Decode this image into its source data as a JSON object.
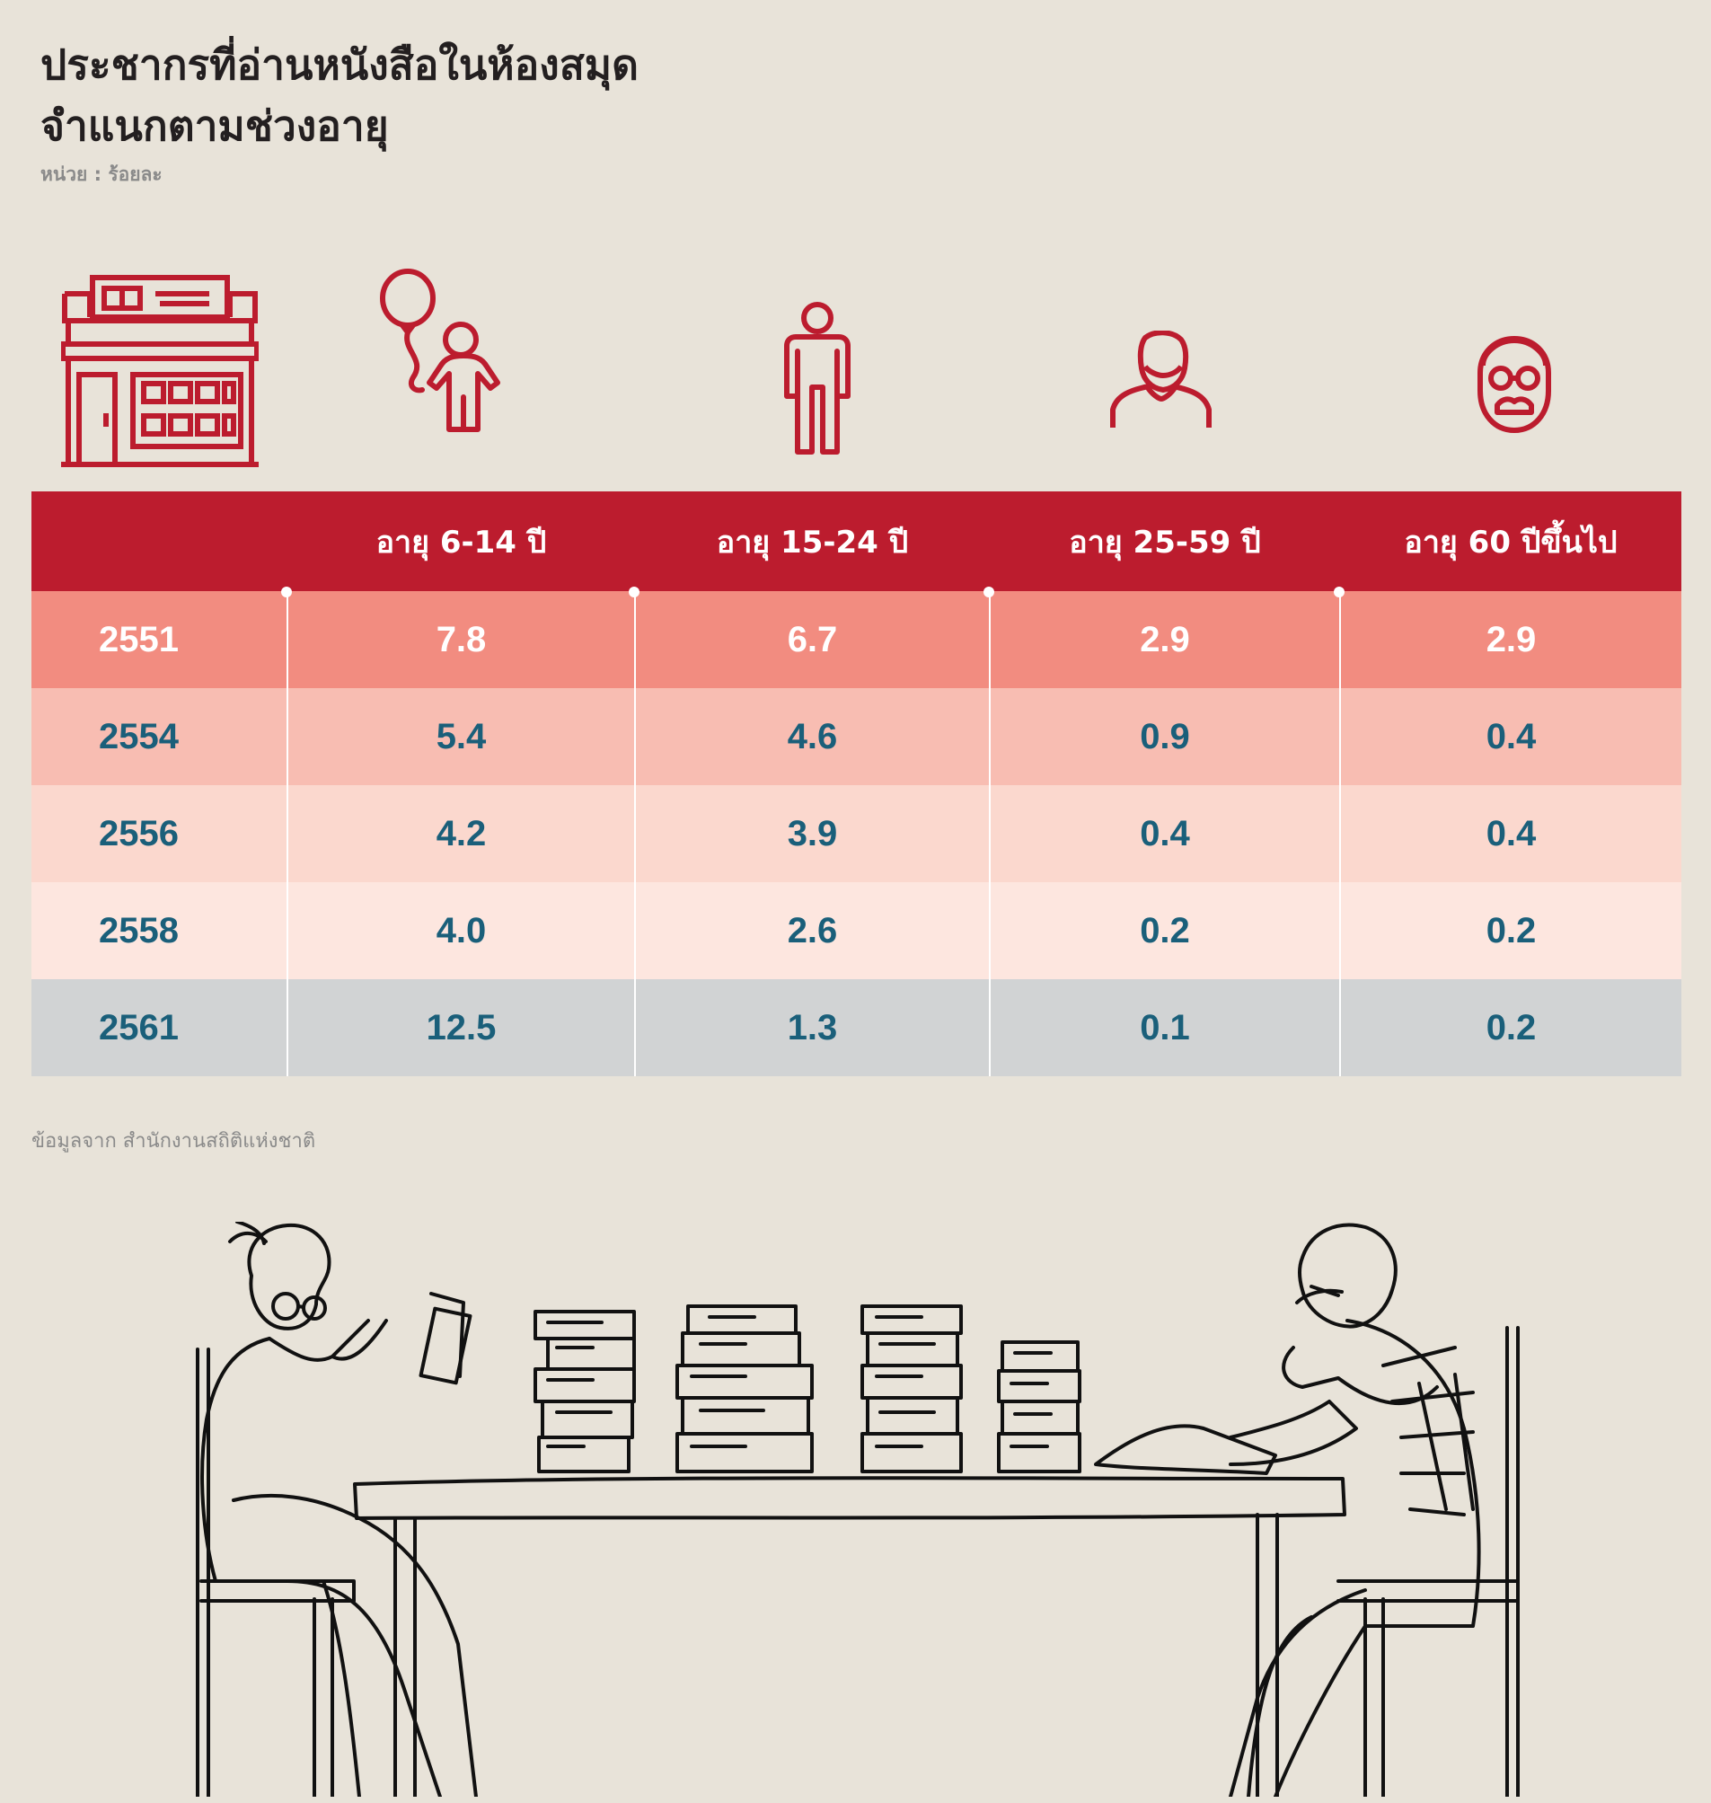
{
  "title": {
    "line1": "ประชากรที่อ่านหนังสือในห้องสมุด",
    "line2": "จำแนกตามช่วงอายุ",
    "unit": "หน่วย : ร้อยละ"
  },
  "icons": [
    "library-building-icon",
    "child-with-balloon-icon",
    "young-person-icon",
    "adult-person-icon",
    "elderly-person-with-glasses-icon"
  ],
  "colors": {
    "header": "#bc1c2e",
    "row_2551": "#f28c80",
    "row_2554": "#f8bdb2",
    "row_2556": "#fbd8ce",
    "row_2558": "#fde6df",
    "row_2561": "#d1d3d4",
    "value_text": "#1a5f7a",
    "icon": "#bc1c2e"
  },
  "chart_data": {
    "type": "table",
    "columns": [
      "",
      "อายุ 6-14 ปี",
      "อายุ 15-24 ปี",
      "อายุ 25-59 ปี",
      "อายุ 60 ปีขึ้นไป"
    ],
    "rows": [
      {
        "year": "2551",
        "values": [
          "7.8",
          "6.7",
          "2.9",
          "2.9"
        ]
      },
      {
        "year": "2554",
        "values": [
          "5.4",
          "4.6",
          "0.9",
          "0.4"
        ]
      },
      {
        "year": "2556",
        "values": [
          "4.2",
          "3.9",
          "0.4",
          "0.4"
        ]
      },
      {
        "year": "2558",
        "values": [
          "4.0",
          "2.6",
          "0.2",
          "0.2"
        ]
      },
      {
        "year": "2561",
        "values": [
          "12.5",
          "1.3",
          "0.1",
          "0.2"
        ]
      }
    ]
  },
  "source": "ข้อมูลจาก  สำนักงานสถิติแห่งชาติ"
}
